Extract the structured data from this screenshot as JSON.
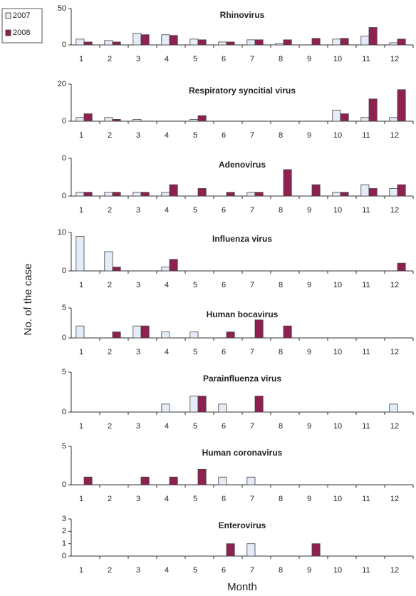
{
  "ylabel": "No. of the case",
  "xlabel": "Month",
  "legend": [
    {
      "name": "2007",
      "color": "#e4ecf7"
    },
    {
      "name": "2008",
      "color": "#8e2150"
    }
  ],
  "chart_data": [
    {
      "type": "bar",
      "title": "Rhinovirus",
      "categories": [
        1,
        2,
        3,
        4,
        5,
        6,
        7,
        8,
        9,
        10,
        11,
        12
      ],
      "series": [
        {
          "values": [
            8,
            6,
            16,
            14,
            8,
            4,
            7,
            2,
            0,
            8,
            12,
            3
          ]
        },
        {
          "values": [
            4,
            4,
            14,
            13,
            7,
            4,
            7,
            7,
            9,
            9,
            24,
            8
          ]
        }
      ],
      "ylim": [
        0,
        50
      ],
      "yticks": [
        0,
        50
      ]
    },
    {
      "type": "bar",
      "title": "Respiratory syncitial virus",
      "categories": [
        1,
        2,
        3,
        4,
        5,
        6,
        7,
        8,
        9,
        10,
        11,
        12
      ],
      "series": [
        {
          "values": [
            2,
            2,
            1,
            0,
            1,
            0,
            0,
            0,
            0,
            6,
            2,
            2
          ]
        },
        {
          "values": [
            4,
            1,
            0,
            0,
            3,
            0,
            0,
            0,
            0,
            4,
            12,
            17
          ]
        }
      ],
      "ylim": [
        0,
        20
      ],
      "yticks": [
        0,
        20
      ]
    },
    {
      "type": "bar",
      "title": "Adenovirus",
      "categories": [
        1,
        2,
        3,
        4,
        5,
        6,
        7,
        8,
        9,
        10,
        11,
        12
      ],
      "series": [
        {
          "values": [
            1,
            1,
            1,
            1,
            0,
            0,
            1,
            0,
            0,
            1,
            3,
            2
          ]
        },
        {
          "values": [
            1,
            1,
            1,
            3,
            2,
            1,
            1,
            7,
            3,
            1,
            2,
            3
          ]
        }
      ],
      "ylim": [
        0,
        10
      ],
      "yticks": [
        0,
        {
          "value": 10,
          "label": "0"
        }
      ]
    },
    {
      "type": "bar",
      "title": "Influenza virus",
      "categories": [
        1,
        2,
        3,
        4,
        5,
        6,
        7,
        8,
        9,
        10,
        11,
        12
      ],
      "series": [
        {
          "values": [
            9,
            5,
            0,
            1,
            0,
            0,
            0,
            0,
            0,
            0,
            0,
            0
          ]
        },
        {
          "values": [
            0,
            1,
            0,
            3,
            0,
            0,
            0,
            0,
            0,
            0,
            0,
            2
          ]
        }
      ],
      "ylim": [
        0,
        10
      ],
      "yticks": [
        0,
        10
      ]
    },
    {
      "type": "bar",
      "title": "Human bocavirus",
      "categories": [
        1,
        2,
        3,
        4,
        5,
        6,
        7,
        8,
        9,
        10,
        11,
        12
      ],
      "series": [
        {
          "values": [
            2,
            0,
            2,
            1,
            1,
            0,
            0,
            0,
            0,
            0,
            0,
            0
          ]
        },
        {
          "values": [
            0,
            1,
            2,
            0,
            0,
            1,
            3,
            2,
            0,
            0,
            0,
            0
          ]
        }
      ],
      "ylim": [
        0,
        5
      ],
      "yticks": [
        0,
        5
      ]
    },
    {
      "type": "bar",
      "title": "Parainfluenza virus",
      "categories": [
        1,
        2,
        3,
        4,
        5,
        6,
        7,
        8,
        9,
        10,
        11,
        12
      ],
      "series": [
        {
          "values": [
            0,
            0,
            0,
            1,
            2,
            1,
            0,
            0,
            0,
            0,
            0,
            1
          ]
        },
        {
          "values": [
            0,
            0,
            0,
            0,
            2,
            0,
            2,
            0,
            0,
            0,
            0,
            0
          ]
        }
      ],
      "ylim": [
        0,
        5
      ],
      "yticks": [
        0,
        5
      ]
    },
    {
      "type": "bar",
      "title": "Human coronavirus",
      "categories": [
        1,
        2,
        3,
        4,
        5,
        6,
        7,
        8,
        9,
        10,
        11,
        12
      ],
      "series": [
        {
          "values": [
            0,
            0,
            0,
            0,
            0,
            1,
            1,
            0,
            0,
            0,
            0,
            0
          ]
        },
        {
          "values": [
            1,
            0,
            1,
            1,
            2,
            0,
            0,
            0,
            0,
            0,
            0,
            0
          ]
        }
      ],
      "ylim": [
        0,
        5
      ],
      "yticks": [
        0,
        5
      ]
    },
    {
      "type": "bar",
      "title": "Enterovirus",
      "categories": [
        1,
        2,
        3,
        4,
        5,
        6,
        7,
        8,
        9,
        10,
        11,
        12
      ],
      "series": [
        {
          "values": [
            0,
            0,
            0,
            0,
            0,
            0,
            1,
            0,
            0,
            0,
            0,
            0
          ]
        },
        {
          "values": [
            0,
            0,
            0,
            0,
            0,
            1,
            0,
            0,
            1,
            0,
            0,
            0
          ]
        }
      ],
      "ylim": [
        0,
        3
      ],
      "yticks": [
        0,
        1,
        2,
        3
      ]
    }
  ]
}
